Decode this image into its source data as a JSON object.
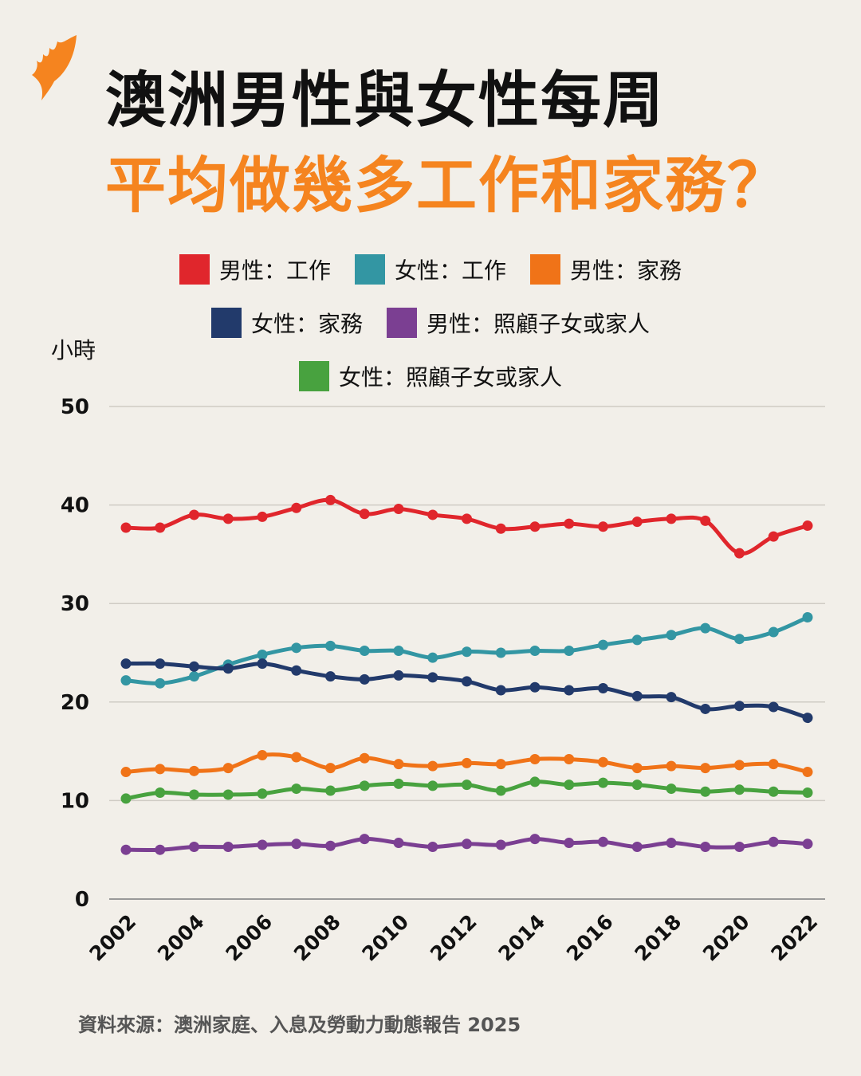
{
  "title": {
    "line1": "澳洲男性與女性每周",
    "line2": "平均做幾多工作和家務？"
  },
  "colors": {
    "title_accent": "#f5841f",
    "logo": "#f5841f",
    "background": "#f2efe9"
  },
  "source": "資料來源：澳洲家庭、入息及勞動力動態報告 2025",
  "chart_data": {
    "type": "line",
    "ylabel": "小時",
    "ylim": [
      0,
      50
    ],
    "yticks": [
      "0",
      "10",
      "20",
      "30",
      "40",
      "50"
    ],
    "xticks": [
      "2002",
      "2004",
      "2006",
      "2008",
      "2010",
      "2012",
      "2014",
      "2016",
      "2018",
      "2020",
      "2022"
    ],
    "x": [
      2002,
      2003,
      2004,
      2005,
      2006,
      2007,
      2008,
      2009,
      2010,
      2011,
      2012,
      2013,
      2014,
      2015,
      2016,
      2017,
      2018,
      2019,
      2020,
      2021,
      2022
    ],
    "grid": true,
    "legend_placement": "top-center",
    "series": [
      {
        "name": "男性：工作",
        "color": "#e0262c",
        "values": [
          37.7,
          37.7,
          39.0,
          38.6,
          38.8,
          39.7,
          40.5,
          39.1,
          39.6,
          39.0,
          38.6,
          37.6,
          37.8,
          38.1,
          37.8,
          38.3,
          38.6,
          38.4,
          35.1,
          36.8,
          37.9
        ]
      },
      {
        "name": "女性：工作",
        "color": "#3396a3",
        "values": [
          22.2,
          21.9,
          22.6,
          23.8,
          24.8,
          25.5,
          25.7,
          25.2,
          25.2,
          24.5,
          25.1,
          25.0,
          25.2,
          25.2,
          25.8,
          26.3,
          26.8,
          27.5,
          26.4,
          27.1,
          28.6
        ]
      },
      {
        "name": "男性：家務",
        "color": "#f07318",
        "values": [
          12.9,
          13.2,
          13.0,
          13.3,
          14.6,
          14.4,
          13.3,
          14.3,
          13.7,
          13.5,
          13.8,
          13.7,
          14.2,
          14.2,
          13.9,
          13.3,
          13.5,
          13.3,
          13.6,
          13.7,
          12.9
        ]
      },
      {
        "name": "女性：家務",
        "color": "#223a6b",
        "values": [
          23.9,
          23.9,
          23.6,
          23.4,
          23.9,
          23.2,
          22.6,
          22.3,
          22.7,
          22.5,
          22.1,
          21.2,
          21.5,
          21.2,
          21.4,
          20.6,
          20.5,
          19.3,
          19.6,
          19.5,
          18.4
        ]
      },
      {
        "name": "男性：照顧子女或家人",
        "color": "#7b3f92",
        "values": [
          5.0,
          5.0,
          5.3,
          5.3,
          5.5,
          5.6,
          5.4,
          6.1,
          5.7,
          5.3,
          5.6,
          5.5,
          6.1,
          5.7,
          5.8,
          5.3,
          5.7,
          5.3,
          5.3,
          5.8,
          5.6
        ]
      },
      {
        "name": "女性：照顧子女或家人",
        "color": "#48a23f",
        "values": [
          10.2,
          10.8,
          10.6,
          10.6,
          10.7,
          11.2,
          11.0,
          11.5,
          11.7,
          11.5,
          11.6,
          11.0,
          11.9,
          11.6,
          11.8,
          11.6,
          11.2,
          10.9,
          11.1,
          10.9,
          10.8
        ]
      }
    ]
  }
}
